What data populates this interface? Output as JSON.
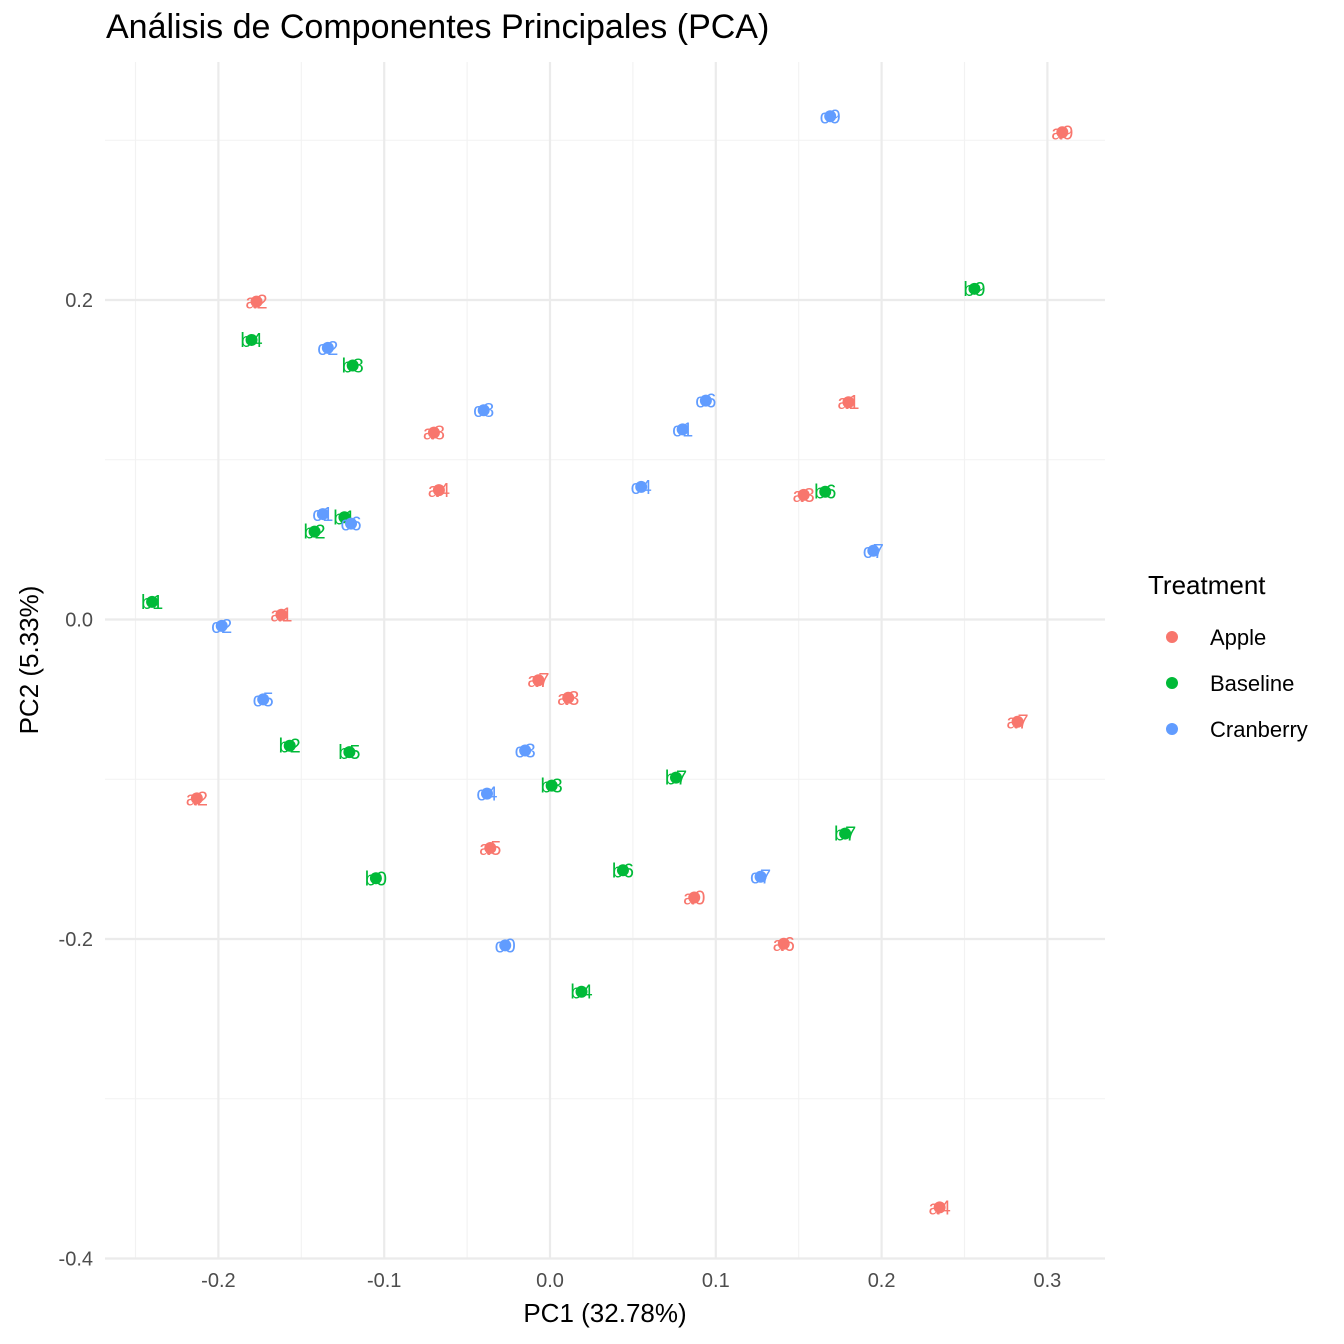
{
  "chart_data": {
    "type": "scatter",
    "title": "Análisis de Componentes Principales (PCA)",
    "xlabel": "PC1 (32.78%)",
    "ylabel": "PC2 (5.33%)",
    "xlim": [
      -0.26,
      0.34
    ],
    "ylim": [
      -0.4,
      0.33
    ],
    "x_ticks": [
      "-0.2",
      "-0.1",
      "0.0",
      "0.1",
      "0.2",
      "0.3"
    ],
    "y_ticks": [
      "-0.4",
      "-0.2",
      "0.0",
      "0.2"
    ],
    "grid": true,
    "legend": {
      "title": "Treatment",
      "position": "right",
      "items": [
        {
          "name": "Apple",
          "color": "#F8766D"
        },
        {
          "name": "Baseline",
          "color": "#00BA38"
        },
        {
          "name": "Cranberry",
          "color": "#619CFF"
        }
      ]
    },
    "series": [
      {
        "name": "Apple",
        "color": "#F8766D",
        "points": [
          {
            "label": "a0",
            "x": 0.087,
            "y": -0.174
          },
          {
            "label": "a1",
            "x": -0.162,
            "y": 0.003
          },
          {
            "label": "a2",
            "x": -0.177,
            "y": 0.199
          },
          {
            "label": "a3",
            "x": 0.011,
            "y": -0.049
          },
          {
            "label": "a4",
            "x": -0.067,
            "y": 0.081
          },
          {
            "label": "a5",
            "x": -0.036,
            "y": -0.143
          },
          {
            "label": "a6",
            "x": 0.141,
            "y": -0.203
          },
          {
            "label": "a7",
            "x": -0.007,
            "y": -0.038
          },
          {
            "label": "a8",
            "x": -0.07,
            "y": 0.117
          },
          {
            "label": "a9",
            "x": 0.309,
            "y": 0.305
          },
          {
            "label": "a1",
            "x": 0.18,
            "y": 0.136
          },
          {
            "label": "a3",
            "x": 0.153,
            "y": 0.078
          },
          {
            "label": "a7",
            "x": 0.282,
            "y": -0.064
          },
          {
            "label": "a2",
            "x": -0.213,
            "y": -0.112
          },
          {
            "label": "a4",
            "x": 0.235,
            "y": -0.368
          }
        ]
      },
      {
        "name": "Baseline",
        "color": "#00BA38",
        "points": [
          {
            "label": "b0",
            "x": -0.105,
            "y": -0.162
          },
          {
            "label": "b1",
            "x": -0.24,
            "y": 0.011
          },
          {
            "label": "b2",
            "x": -0.157,
            "y": -0.079
          },
          {
            "label": "b3",
            "x": 0.001,
            "y": -0.104
          },
          {
            "label": "b4",
            "x": 0.019,
            "y": -0.233
          },
          {
            "label": "b5",
            "x": -0.121,
            "y": -0.083
          },
          {
            "label": "b6",
            "x": 0.044,
            "y": -0.157
          },
          {
            "label": "b7",
            "x": 0.076,
            "y": -0.099
          },
          {
            "label": "b8",
            "x": -0.119,
            "y": 0.159
          },
          {
            "label": "b9",
            "x": 0.256,
            "y": 0.207
          },
          {
            "label": "b4",
            "x": -0.18,
            "y": 0.175
          },
          {
            "label": "b1",
            "x": -0.124,
            "y": 0.064
          },
          {
            "label": "b2",
            "x": -0.142,
            "y": 0.055
          },
          {
            "label": "b6",
            "x": 0.166,
            "y": 0.08
          },
          {
            "label": "b7",
            "x": 0.178,
            "y": -0.134
          }
        ]
      },
      {
        "name": "Cranberry",
        "color": "#619CFF",
        "points": [
          {
            "label": "c0",
            "x": -0.027,
            "y": -0.204
          },
          {
            "label": "c1",
            "x": 0.08,
            "y": 0.119
          },
          {
            "label": "c2",
            "x": -0.198,
            "y": -0.004
          },
          {
            "label": "c3",
            "x": -0.015,
            "y": -0.082
          },
          {
            "label": "c4",
            "x": 0.055,
            "y": 0.083
          },
          {
            "label": "c5",
            "x": -0.173,
            "y": -0.05
          },
          {
            "label": "c6",
            "x": 0.094,
            "y": 0.137
          },
          {
            "label": "c7",
            "x": 0.127,
            "y": -0.161
          },
          {
            "label": "c8",
            "x": -0.04,
            "y": 0.131
          },
          {
            "label": "c9",
            "x": 0.169,
            "y": 0.315
          },
          {
            "label": "c2",
            "x": -0.134,
            "y": 0.17
          },
          {
            "label": "c1",
            "x": -0.137,
            "y": 0.066
          },
          {
            "label": "c6",
            "x": -0.12,
            "y": 0.06
          },
          {
            "label": "c7",
            "x": 0.195,
            "y": 0.043
          },
          {
            "label": "c4",
            "x": -0.038,
            "y": -0.109
          }
        ]
      }
    ]
  }
}
